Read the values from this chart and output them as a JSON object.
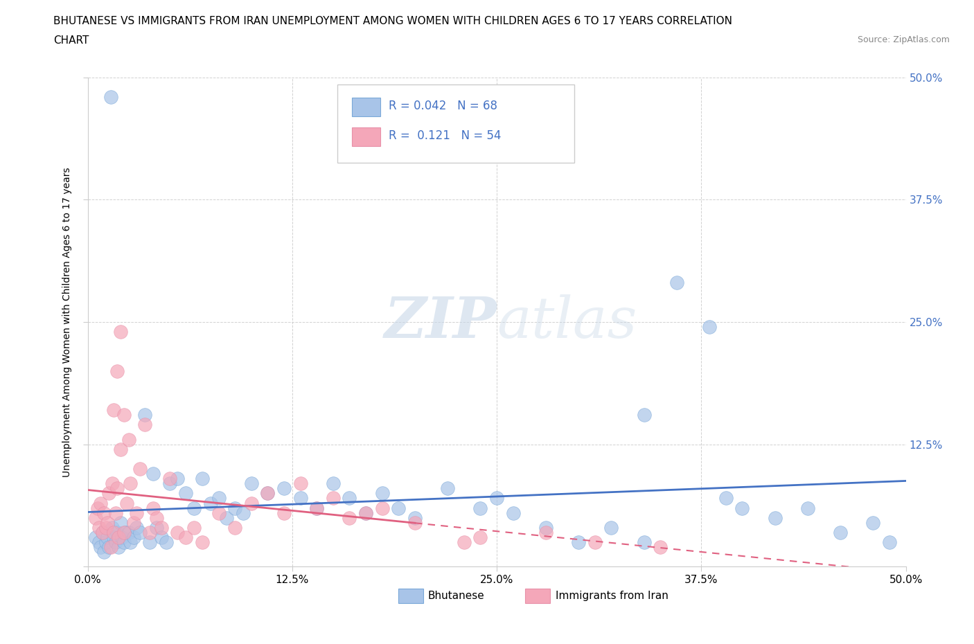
{
  "title_line1": "BHUTANESE VS IMMIGRANTS FROM IRAN UNEMPLOYMENT AMONG WOMEN WITH CHILDREN AGES 6 TO 17 YEARS CORRELATION",
  "title_line2": "CHART",
  "source": "Source: ZipAtlas.com",
  "ylabel": "Unemployment Among Women with Children Ages 6 to 17 years",
  "xlim": [
    0,
    0.5
  ],
  "ylim": [
    0,
    0.5
  ],
  "xticks": [
    0.0,
    0.125,
    0.25,
    0.375,
    0.5
  ],
  "yticks": [
    0.0,
    0.125,
    0.25,
    0.375,
    0.5
  ],
  "xticklabels": [
    "0.0%",
    "12.5%",
    "25.0%",
    "37.5%",
    "50.0%"
  ],
  "yticklabels_right": [
    "",
    "12.5%",
    "25.0%",
    "37.5%",
    "50.0%"
  ],
  "color_bhutanese": "#a8c4e8",
  "color_iran": "#f4a7b9",
  "trend_color_bhutanese": "#4472c4",
  "trend_color_iran": "#e06080",
  "watermark": "ZIPatlas",
  "legend_label_bhutanese": "Bhutanese",
  "legend_label_iran": "Immigrants from Iran",
  "R_bhutanese": "0.042",
  "N_bhutanese": "68",
  "R_iran": "0.121",
  "N_iran": "54",
  "bhutanese_x": [
    0.014,
    0.005,
    0.007,
    0.008,
    0.009,
    0.01,
    0.011,
    0.012,
    0.013,
    0.015,
    0.016,
    0.017,
    0.018,
    0.019,
    0.02,
    0.021,
    0.022,
    0.023,
    0.025,
    0.026,
    0.028,
    0.03,
    0.032,
    0.035,
    0.038,
    0.04,
    0.042,
    0.045,
    0.048,
    0.05,
    0.055,
    0.06,
    0.065,
    0.07,
    0.075,
    0.08,
    0.085,
    0.09,
    0.095,
    0.1,
    0.11,
    0.12,
    0.13,
    0.14,
    0.15,
    0.16,
    0.17,
    0.18,
    0.19,
    0.2,
    0.22,
    0.24,
    0.25,
    0.26,
    0.28,
    0.3,
    0.32,
    0.34,
    0.36,
    0.38,
    0.4,
    0.42,
    0.44,
    0.46,
    0.48,
    0.49,
    0.34,
    0.39
  ],
  "bhutanese_y": [
    0.48,
    0.03,
    0.025,
    0.02,
    0.035,
    0.015,
    0.025,
    0.03,
    0.02,
    0.04,
    0.03,
    0.025,
    0.035,
    0.02,
    0.045,
    0.03,
    0.025,
    0.035,
    0.035,
    0.025,
    0.03,
    0.04,
    0.035,
    0.155,
    0.025,
    0.095,
    0.04,
    0.03,
    0.025,
    0.085,
    0.09,
    0.075,
    0.06,
    0.09,
    0.065,
    0.07,
    0.05,
    0.06,
    0.055,
    0.085,
    0.075,
    0.08,
    0.07,
    0.06,
    0.085,
    0.07,
    0.055,
    0.075,
    0.06,
    0.05,
    0.08,
    0.06,
    0.07,
    0.055,
    0.04,
    0.025,
    0.04,
    0.025,
    0.29,
    0.245,
    0.06,
    0.05,
    0.06,
    0.035,
    0.045,
    0.025,
    0.155,
    0.07
  ],
  "iran_x": [
    0.005,
    0.006,
    0.007,
    0.008,
    0.009,
    0.01,
    0.011,
    0.012,
    0.013,
    0.014,
    0.015,
    0.016,
    0.017,
    0.018,
    0.019,
    0.02,
    0.022,
    0.024,
    0.026,
    0.028,
    0.03,
    0.032,
    0.035,
    0.038,
    0.04,
    0.042,
    0.045,
    0.05,
    0.055,
    0.06,
    0.065,
    0.07,
    0.08,
    0.09,
    0.1,
    0.11,
    0.12,
    0.13,
    0.14,
    0.15,
    0.16,
    0.17,
    0.18,
    0.2,
    0.23,
    0.24,
    0.28,
    0.31,
    0.35,
    0.016,
    0.018,
    0.02,
    0.022,
    0.025
  ],
  "iran_y": [
    0.05,
    0.06,
    0.04,
    0.065,
    0.035,
    0.055,
    0.04,
    0.045,
    0.075,
    0.02,
    0.085,
    0.035,
    0.055,
    0.08,
    0.03,
    0.12,
    0.035,
    0.065,
    0.085,
    0.045,
    0.055,
    0.1,
    0.145,
    0.035,
    0.06,
    0.05,
    0.04,
    0.09,
    0.035,
    0.03,
    0.04,
    0.025,
    0.055,
    0.04,
    0.065,
    0.075,
    0.055,
    0.085,
    0.06,
    0.07,
    0.05,
    0.055,
    0.06,
    0.045,
    0.025,
    0.03,
    0.035,
    0.025,
    0.02,
    0.16,
    0.2,
    0.24,
    0.155,
    0.13
  ]
}
